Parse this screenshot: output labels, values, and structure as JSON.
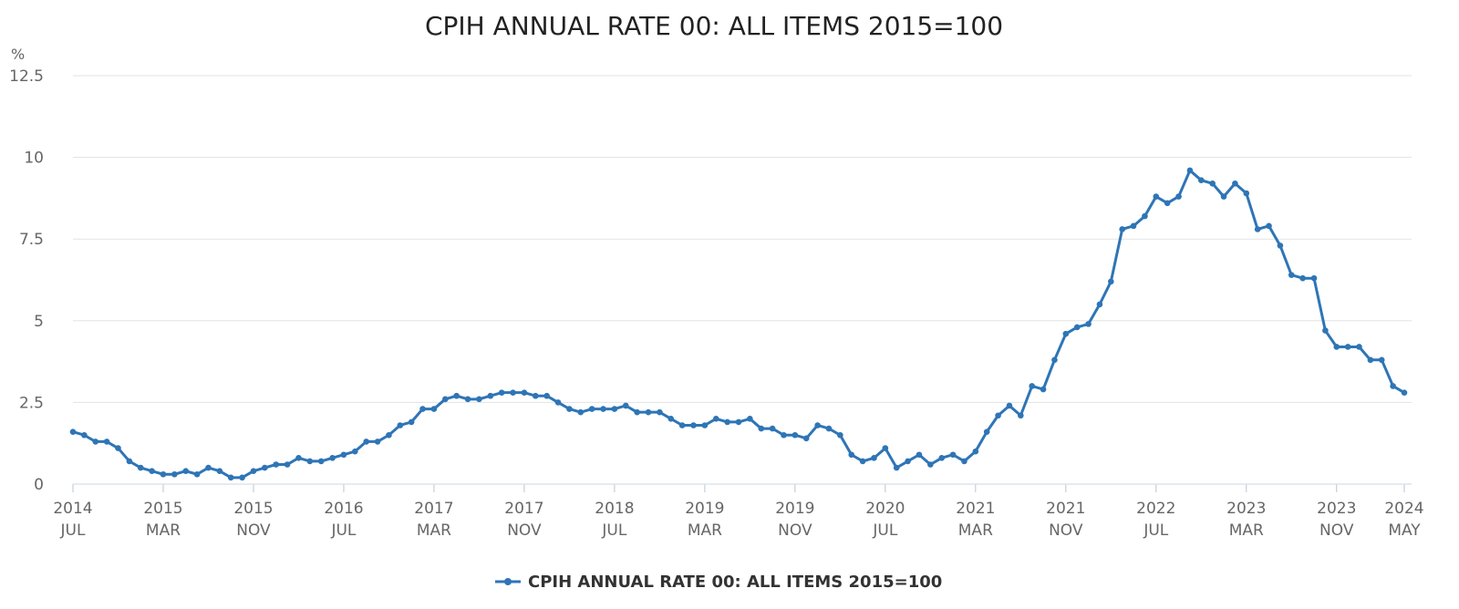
{
  "chart_data": {
    "type": "line",
    "title": "CPIH ANNUAL RATE 00: ALL ITEMS 2015=100",
    "ylabel": "%",
    "ylim": [
      0,
      12.5
    ],
    "yticks": [
      "0",
      "2.5",
      "5",
      "7.5",
      "10",
      "12.5"
    ],
    "grid": true,
    "legend_position": "bottom-center",
    "x_start": "2014-07",
    "x_end": "2024-05",
    "xticks": [
      {
        "year": "2014",
        "month": "JUL"
      },
      {
        "year": "2015",
        "month": "MAR"
      },
      {
        "year": "2015",
        "month": "NOV"
      },
      {
        "year": "2016",
        "month": "JUL"
      },
      {
        "year": "2017",
        "month": "MAR"
      },
      {
        "year": "2017",
        "month": "NOV"
      },
      {
        "year": "2018",
        "month": "JUL"
      },
      {
        "year": "2019",
        "month": "MAR"
      },
      {
        "year": "2019",
        "month": "NOV"
      },
      {
        "year": "2020",
        "month": "JUL"
      },
      {
        "year": "2021",
        "month": "MAR"
      },
      {
        "year": "2021",
        "month": "NOV"
      },
      {
        "year": "2022",
        "month": "JUL"
      },
      {
        "year": "2023",
        "month": "MAR"
      },
      {
        "year": "2023",
        "month": "NOV"
      },
      {
        "year": "2024",
        "month": "MAY"
      }
    ],
    "series": [
      {
        "name": "CPIH ANNUAL RATE 00: ALL ITEMS 2015=100",
        "color": "#2e75b6",
        "values": [
          1.6,
          1.5,
          1.3,
          1.3,
          1.1,
          0.7,
          0.5,
          0.4,
          0.3,
          0.3,
          0.4,
          0.3,
          0.5,
          0.4,
          0.2,
          0.2,
          0.4,
          0.5,
          0.6,
          0.6,
          0.8,
          0.7,
          0.7,
          0.8,
          0.9,
          1.0,
          1.3,
          1.3,
          1.5,
          1.8,
          1.9,
          2.3,
          2.3,
          2.6,
          2.7,
          2.6,
          2.6,
          2.7,
          2.8,
          2.8,
          2.8,
          2.7,
          2.7,
          2.5,
          2.3,
          2.2,
          2.3,
          2.3,
          2.3,
          2.4,
          2.2,
          2.2,
          2.2,
          2.0,
          1.8,
          1.8,
          1.8,
          2.0,
          1.9,
          1.9,
          2.0,
          1.7,
          1.7,
          1.5,
          1.5,
          1.4,
          1.8,
          1.7,
          1.5,
          0.9,
          0.7,
          0.8,
          1.1,
          0.5,
          0.7,
          0.9,
          0.6,
          0.8,
          0.9,
          0.7,
          1.0,
          1.6,
          2.1,
          2.4,
          2.1,
          3.0,
          2.9,
          3.8,
          4.6,
          4.8,
          4.9,
          5.5,
          6.2,
          7.8,
          7.9,
          8.2,
          8.8,
          8.6,
          8.8,
          9.6,
          9.3,
          9.2,
          8.8,
          9.2,
          8.9,
          7.8,
          7.9,
          7.3,
          6.4,
          6.3,
          6.3,
          4.7,
          4.2,
          4.2,
          4.2,
          3.8,
          3.8,
          3.0,
          2.8
        ]
      }
    ]
  }
}
